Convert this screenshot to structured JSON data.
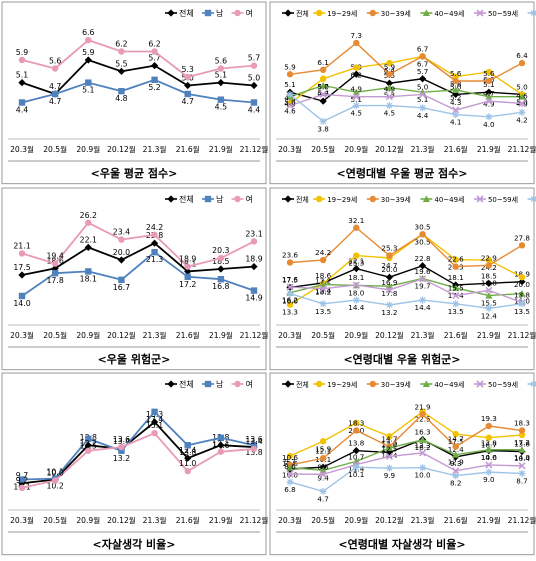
{
  "chart_data": [
    {
      "type": "line",
      "title": "<우울 평균 점수>",
      "categories": [
        "20.3월",
        "20.5월",
        "20.9월",
        "20.12월",
        "21.3월",
        "21.6월",
        "21.9월",
        "21.12월"
      ],
      "ylim": [
        3.5,
        7.1
      ],
      "legend_position": "top-right",
      "series": [
        {
          "name": "전체",
          "color": "#000000",
          "marker": "diamond",
          "values": [
            5.1,
            4.7,
            5.9,
            5.5,
            5.7,
            5.0,
            5.1,
            5.0
          ]
        },
        {
          "name": "남",
          "color": "#4f81bd",
          "marker": "square",
          "values": [
            4.4,
            4.7,
            5.1,
            4.8,
            5.2,
            4.7,
            4.5,
            4.4
          ]
        },
        {
          "name": "여",
          "color": "#e89ab6",
          "marker": "circle",
          "values": [
            5.9,
            5.6,
            6.6,
            6.2,
            6.2,
            5.3,
            5.6,
            5.7
          ]
        }
      ]
    },
    {
      "type": "line",
      "title": "<연령대별 우울 평균 점수>",
      "categories": [
        "20.3월",
        "20.5월",
        "20.9월",
        "20.12월",
        "21.3월",
        "21.6월",
        "21.9월",
        "21.12월"
      ],
      "ylim": [
        3.5,
        7.7
      ],
      "legend_position": "top",
      "series": [
        {
          "name": "전체",
          "color": "#000000",
          "marker": "diamond",
          "values": [
            5.1,
            4.7,
            5.9,
            5.5,
            5.7,
            5.0,
            5.1,
            5.0
          ]
        },
        {
          "name": "19~29세",
          "color": "#f2c200",
          "marker": "circle",
          "values": [
            4.6,
            5.7,
            6.2,
            6.4,
            6.7,
            5.8,
            6.0,
            5.0
          ]
        },
        {
          "name": "30~39세",
          "color": "#e68a34",
          "marker": "circle",
          "values": [
            5.9,
            6.1,
            7.3,
            5.9,
            6.7,
            5.6,
            5.6,
            6.4
          ]
        },
        {
          "name": "40~49세",
          "color": "#70ad47",
          "marker": "triangle",
          "values": [
            4.9,
            5.4,
            5.1,
            5.3,
            5.1,
            5.2,
            4.9,
            4.9
          ]
        },
        {
          "name": "50~59세",
          "color": "#c39bd3",
          "marker": "cross",
          "values": [
            4.5,
            5.0,
            4.9,
            4.9,
            5.0,
            4.3,
            4.7,
            4.6
          ]
        },
        {
          "name": "60세 이상",
          "color": "#9dc3e6",
          "marker": "star",
          "values": [
            5.0,
            3.8,
            4.5,
            4.5,
            4.4,
            4.1,
            4.0,
            4.2
          ]
        }
      ]
    },
    {
      "type": "line",
      "title": "<우울 위험군>",
      "categories": [
        "20.3월",
        "20.5월",
        "20.9월",
        "20.12월",
        "21.3월",
        "21.6월",
        "21.9월",
        "21.12월"
      ],
      "ylim": [
        11,
        28
      ],
      "legend_position": "top-right",
      "series": [
        {
          "name": "전체",
          "color": "#000000",
          "marker": "diamond",
          "values": [
            17.5,
            18.6,
            22.1,
            20.0,
            22.8,
            18.1,
            18.5,
            18.9
          ]
        },
        {
          "name": "남",
          "color": "#4f81bd",
          "marker": "square",
          "values": [
            14.0,
            17.8,
            18.1,
            16.7,
            21.3,
            17.2,
            16.8,
            14.9
          ]
        },
        {
          "name": "여",
          "color": "#e89ab6",
          "marker": "circle",
          "values": [
            21.1,
            19.4,
            26.2,
            23.4,
            24.2,
            18.9,
            20.3,
            23.1
          ]
        }
      ]
    },
    {
      "type": "line",
      "title": "<연령대별 우울 위험군>",
      "categories": [
        "20.3월",
        "20.5월",
        "20.9월",
        "20.12월",
        "21.3월",
        "21.6월",
        "21.9월",
        "21.12월"
      ],
      "ylim": [
        11,
        34
      ],
      "legend_position": "top",
      "series": [
        {
          "name": "전체",
          "color": "#000000",
          "marker": "diamond",
          "values": [
            17.5,
            18.6,
            22.1,
            20.0,
            22.8,
            18.1,
            18.5,
            18.9
          ]
        },
        {
          "name": "19~29세",
          "color": "#f2c200",
          "marker": "circle",
          "values": [
            13.3,
            18.4,
            25.3,
            24.7,
            30.5,
            24.3,
            24.2,
            20.0
          ]
        },
        {
          "name": "30~39세",
          "color": "#e68a34",
          "marker": "circle",
          "values": [
            23.6,
            24.2,
            32.1,
            25.3,
            30.5,
            22.6,
            22.9,
            27.8
          ]
        },
        {
          "name": "40~49세",
          "color": "#70ad47",
          "marker": "triangle",
          "values": [
            16.2,
            18.2,
            18.0,
            17.8,
            19.7,
            17.4,
            15.5,
            16.0
          ]
        },
        {
          "name": "50~59세",
          "color": "#c39bd3",
          "marker": "cross",
          "values": [
            17.6,
            17.2,
            18.1,
            16.9,
            19.6,
            15.5,
            16.8,
            13.8
          ]
        },
        {
          "name": "60세 이상",
          "color": "#9dc3e6",
          "marker": "star",
          "values": [
            16.0,
            13.5,
            14.4,
            13.2,
            14.4,
            13.5,
            12.4,
            13.5
          ]
        }
      ]
    },
    {
      "type": "line",
      "title": "<자살생각 비율>",
      "categories": [
        "20.3월",
        "20.5월",
        "20.9월",
        "20.12월",
        "21.3월",
        "21.6월",
        "21.9월",
        "21.12월"
      ],
      "ylim": [
        8,
        19
      ],
      "legend_position": "top-right",
      "series": [
        {
          "name": "전체",
          "color": "#000000",
          "marker": "diamond",
          "values": [
            9.7,
            10.1,
            13.8,
            13.4,
            16.3,
            12.4,
            13.8,
            13.6
          ]
        },
        {
          "name": "남",
          "color": "#4f81bd",
          "marker": "square",
          "values": [
            10.1,
            10.2,
            14.5,
            13.2,
            17.4,
            13.8,
            14.6,
            13.8
          ]
        },
        {
          "name": "여",
          "color": "#e89ab6",
          "marker": "circle",
          "values": [
            9.2,
            10.0,
            13.2,
            13.6,
            15.1,
            11.0,
            13.1,
            13.4
          ]
        }
      ]
    },
    {
      "type": "line",
      "title": "<연령대별 자살생각 비율>",
      "categories": [
        "20.3월",
        "20.5월",
        "20.9월",
        "20.12월",
        "21.3월",
        "21.6월",
        "21.9월",
        "21.12월"
      ],
      "ylim": [
        3,
        24
      ],
      "legend_position": "top",
      "series": [
        {
          "name": "전체",
          "color": "#000000",
          "marker": "diamond",
          "values": [
            9.7,
            10.1,
            13.8,
            13.4,
            16.3,
            12.4,
            13.8,
            13.6
          ]
        },
        {
          "name": "19~29세",
          "color": "#f2c200",
          "marker": "circle",
          "values": [
            12.6,
            15.9,
            20.0,
            17.0,
            22.5,
            17.5,
            16.7,
            17.3
          ]
        },
        {
          "name": "30~39세",
          "color": "#e68a34",
          "marker": "circle",
          "values": [
            10.6,
            12.1,
            18.3,
            14.7,
            21.9,
            14.7,
            19.3,
            18.3
          ]
        },
        {
          "name": "40~49세",
          "color": "#70ad47",
          "marker": "triangle",
          "values": [
            10.0,
            9.4,
            11.4,
            14.4,
            16.2,
            12.9,
            14.0,
            14.0
          ]
        },
        {
          "name": "50~59세",
          "color": "#c39bd3",
          "marker": "cross",
          "values": [
            8.6,
            8.5,
            10.7,
            12.5,
            13.3,
            9.3,
            10.6,
            10.4
          ]
        },
        {
          "name": "60세 이상",
          "color": "#9dc3e6",
          "marker": "star",
          "values": [
            6.8,
            4.7,
            10.1,
            9.9,
            10.0,
            8.2,
            9.0,
            8.7
          ]
        }
      ]
    }
  ]
}
